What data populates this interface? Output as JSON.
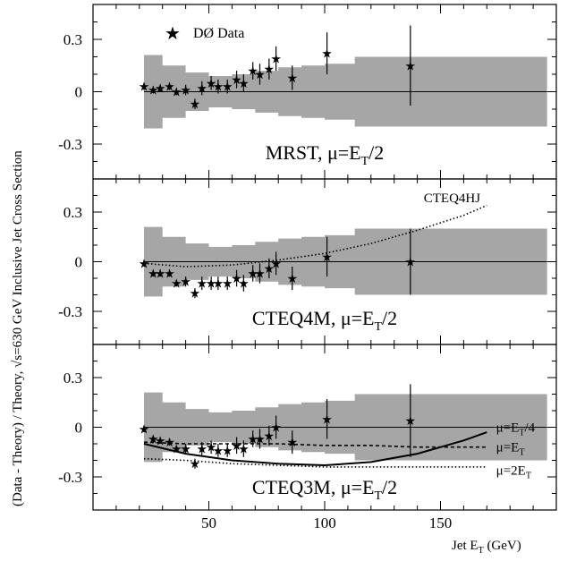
{
  "figure": {
    "ylabel_pre": "(Data - Theory) / Theory,  ",
    "ylabel_sqrt": "√",
    "ylabel_post": "s=630 GeV Inclusive Jet Cross Section",
    "xlabel_main": "Jet E",
    "xlabel_sub": "T",
    "xlabel_unit": " (GeV)",
    "legend_label": "DØ Data"
  },
  "colors": {
    "band": "#a6a6a6",
    "axis": "#000000",
    "data": "#000000"
  },
  "chart_data": [
    {
      "type": "scatter",
      "panel": "top",
      "title": "MRST,  μ=E",
      "title_sub": "T",
      "title_end": "/2",
      "xlim": [
        0,
        200
      ],
      "ylim": [
        -0.5,
        0.5
      ],
      "yticks": [
        -0.3,
        0,
        0.3
      ],
      "ytick_labels": [
        "-0.3",
        "0",
        "0.3"
      ],
      "legend": "top-left",
      "series": [
        {
          "name": "DØ Data",
          "x": [
            22,
            26,
            29,
            33,
            36,
            40,
            44,
            47,
            51,
            54,
            58,
            62,
            65,
            69,
            72,
            76,
            79,
            86,
            101,
            137
          ],
          "y": [
            0.03,
            0.01,
            0.02,
            0.03,
            0.0,
            0.01,
            -0.07,
            0.02,
            0.05,
            0.03,
            0.03,
            0.07,
            0.05,
            0.12,
            0.1,
            0.13,
            0.19,
            0.08,
            0.22,
            0.15
          ],
          "err": [
            0.02,
            0.02,
            0.02,
            0.02,
            0.02,
            0.03,
            0.03,
            0.04,
            0.04,
            0.04,
            0.04,
            0.05,
            0.05,
            0.05,
            0.06,
            0.06,
            0.07,
            0.07,
            0.12,
            0.23
          ]
        }
      ],
      "band": {
        "x": [
          22,
          30,
          40,
          50,
          60,
          70,
          80,
          90,
          100,
          113,
          125,
          137,
          150,
          196
        ],
        "upper": [
          0.21,
          0.15,
          0.11,
          0.09,
          0.1,
          0.12,
          0.14,
          0.15,
          0.16,
          0.2,
          0.2,
          0.2,
          0.2,
          0.2
        ],
        "lower": [
          -0.21,
          -0.15,
          -0.11,
          -0.09,
          -0.1,
          -0.12,
          -0.14,
          -0.15,
          -0.16,
          -0.2,
          -0.2,
          -0.2,
          -0.2,
          -0.2
        ]
      },
      "curves": []
    },
    {
      "type": "scatter",
      "panel": "middle",
      "title": "CTEQ4M, μ=E",
      "title_sub": "T",
      "title_end": "/2",
      "xlim": [
        0,
        200
      ],
      "ylim": [
        -0.5,
        0.5
      ],
      "yticks": [
        -0.3,
        0,
        0.3
      ],
      "ytick_labels": [
        "-0.3",
        "0",
        "0.3"
      ],
      "series": [
        {
          "name": "DØ Data",
          "x": [
            22,
            26,
            29,
            33,
            36,
            40,
            44,
            47,
            51,
            54,
            58,
            62,
            65,
            69,
            72,
            76,
            79,
            86,
            101,
            137
          ],
          "y": [
            -0.01,
            -0.07,
            -0.07,
            -0.07,
            -0.13,
            -0.12,
            -0.19,
            -0.13,
            -0.13,
            -0.13,
            -0.13,
            -0.1,
            -0.13,
            -0.07,
            -0.07,
            -0.04,
            -0.01,
            -0.1,
            0.03,
            0.0
          ],
          "err": [
            0.02,
            0.02,
            0.02,
            0.02,
            0.02,
            0.03,
            0.03,
            0.04,
            0.04,
            0.04,
            0.04,
            0.05,
            0.05,
            0.05,
            0.06,
            0.06,
            0.07,
            0.07,
            0.12,
            0.2
          ]
        }
      ],
      "band": {
        "x": [
          22,
          30,
          40,
          50,
          60,
          70,
          80,
          90,
          100,
          113,
          125,
          137,
          150,
          196
        ],
        "upper": [
          0.21,
          0.15,
          0.11,
          0.09,
          0.1,
          0.12,
          0.14,
          0.15,
          0.16,
          0.2,
          0.2,
          0.2,
          0.2,
          0.2
        ],
        "lower": [
          -0.21,
          -0.15,
          -0.11,
          -0.09,
          -0.1,
          -0.12,
          -0.14,
          -0.15,
          -0.16,
          -0.2,
          -0.2,
          -0.2,
          -0.2,
          -0.2
        ]
      },
      "curves": [
        {
          "name": "CTEQ4HJ",
          "style": "dotted",
          "x": [
            22,
            40,
            60,
            80,
            100,
            120,
            140,
            160,
            170
          ],
          "y": [
            -0.01,
            -0.03,
            -0.02,
            0.01,
            0.05,
            0.11,
            0.19,
            0.28,
            0.34
          ]
        }
      ],
      "annotations": [
        {
          "text": "CTEQ4HJ",
          "x": 155,
          "y": 0.38
        }
      ]
    },
    {
      "type": "scatter",
      "panel": "bottom",
      "title": "CTEQ3M,  μ=E",
      "title_sub": "T",
      "title_end": "/2",
      "xlim": [
        0,
        200
      ],
      "ylim": [
        -0.5,
        0.5
      ],
      "yticks": [
        -0.3,
        0,
        0.3
      ],
      "ytick_labels": [
        "-0.3",
        "0",
        "0.3"
      ],
      "xticks": [
        50,
        100,
        150
      ],
      "xtick_labels": [
        "50",
        "100",
        "150"
      ],
      "series": [
        {
          "name": "DØ Data",
          "x": [
            22,
            26,
            29,
            33,
            36,
            40,
            44,
            47,
            51,
            54,
            58,
            62,
            65,
            69,
            72,
            76,
            79,
            86,
            101,
            137
          ],
          "y": [
            -0.01,
            -0.07,
            -0.08,
            -0.09,
            -0.13,
            -0.13,
            -0.22,
            -0.13,
            -0.12,
            -0.14,
            -0.14,
            -0.11,
            -0.13,
            -0.07,
            -0.07,
            -0.05,
            0.0,
            -0.09,
            0.05,
            0.04
          ],
          "err": [
            0.02,
            0.02,
            0.02,
            0.02,
            0.02,
            0.03,
            0.03,
            0.04,
            0.04,
            0.04,
            0.04,
            0.05,
            0.05,
            0.05,
            0.06,
            0.06,
            0.07,
            0.07,
            0.12,
            0.22
          ]
        }
      ],
      "band": {
        "x": [
          22,
          30,
          40,
          50,
          60,
          70,
          80,
          90,
          100,
          113,
          125,
          137,
          150,
          196
        ],
        "upper": [
          0.21,
          0.15,
          0.11,
          0.09,
          0.1,
          0.12,
          0.14,
          0.15,
          0.16,
          0.2,
          0.2,
          0.2,
          0.2,
          0.2
        ],
        "lower": [
          -0.21,
          -0.15,
          -0.11,
          -0.09,
          -0.1,
          -0.12,
          -0.14,
          -0.15,
          -0.16,
          -0.2,
          -0.2,
          -0.2,
          -0.2,
          -0.2
        ]
      },
      "curves": [
        {
          "name": "μ=ET/4",
          "style": "solid",
          "x": [
            22,
            40,
            60,
            80,
            100,
            120,
            140,
            160,
            170
          ],
          "y": [
            -0.1,
            -0.16,
            -0.2,
            -0.22,
            -0.23,
            -0.21,
            -0.16,
            -0.08,
            -0.03
          ]
        },
        {
          "name": "μ=ET",
          "style": "dashed",
          "x": [
            22,
            40,
            60,
            80,
            100,
            120,
            140,
            160,
            170
          ],
          "y": [
            -0.09,
            -0.1,
            -0.1,
            -0.1,
            -0.11,
            -0.11,
            -0.12,
            -0.12,
            -0.12
          ]
        },
        {
          "name": "μ=2ET",
          "style": "dotted",
          "x": [
            22,
            40,
            60,
            80,
            100,
            120,
            140,
            160,
            170
          ],
          "y": [
            -0.19,
            -0.2,
            -0.22,
            -0.23,
            -0.24,
            -0.24,
            -0.24,
            -0.24,
            -0.24
          ]
        }
      ],
      "labels": [
        {
          "main": "μ=E",
          "sub": "T",
          "end": "/4",
          "x": 174,
          "y": 0.0
        },
        {
          "main": "μ=E",
          "sub": "T",
          "end": "",
          "x": 174,
          "y": -0.12
        },
        {
          "main": "μ=2E",
          "sub": "T",
          "end": "",
          "x": 174,
          "y": -0.26
        }
      ]
    }
  ]
}
